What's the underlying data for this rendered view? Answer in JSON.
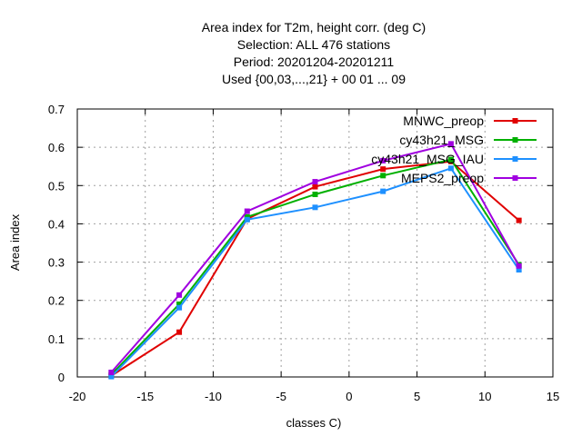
{
  "chart_data": {
    "type": "line",
    "title_lines": [
      "Area index  for T2m, height corr. (deg C)",
      "Selection: ALL    476 stations",
      "Period: 20201204-20201211",
      "Used {00,03,...,21} + 00 01 ... 09"
    ],
    "xlabel": "classes C)",
    "ylabel": "Area index",
    "xlim": [
      -20,
      15
    ],
    "ylim": [
      0,
      0.7
    ],
    "x_ticks": [
      -20,
      -15,
      -10,
      -5,
      0,
      5,
      10,
      15
    ],
    "x_tick_labels": [
      "-20",
      "-15",
      "-10",
      "-5",
      "0",
      "5",
      "10",
      "15"
    ],
    "y_ticks": [
      0,
      0.1,
      0.2,
      0.3,
      0.4,
      0.5,
      0.6,
      0.7
    ],
    "y_tick_labels": [
      "0",
      "0.1",
      "0.2",
      "0.3",
      "0.4",
      "0.5",
      "0.6",
      "0.7"
    ],
    "grid": true,
    "legend_position": "top-right",
    "x": [
      -17.5,
      -12.5,
      -7.5,
      -2.5,
      2.5,
      7.5,
      12.5
    ],
    "series": [
      {
        "name": "MNWC_preop",
        "color": "#e00000",
        "values": [
          0.003,
          0.117,
          0.413,
          0.497,
          0.543,
          0.563,
          0.409
        ]
      },
      {
        "name": "cy43h21_MSG",
        "color": "#00b000",
        "values": [
          0.006,
          0.19,
          0.418,
          0.477,
          0.526,
          0.568,
          0.293
        ]
      },
      {
        "name": "cy43h21_MSG_IAU",
        "color": "#1e90ff",
        "values": [
          0.001,
          0.181,
          0.411,
          0.443,
          0.485,
          0.545,
          0.28
        ]
      },
      {
        "name": "MEPS2_preop",
        "color": "#a000e0",
        "values": [
          0.012,
          0.214,
          0.433,
          0.51,
          0.565,
          0.609,
          0.29
        ]
      }
    ]
  }
}
